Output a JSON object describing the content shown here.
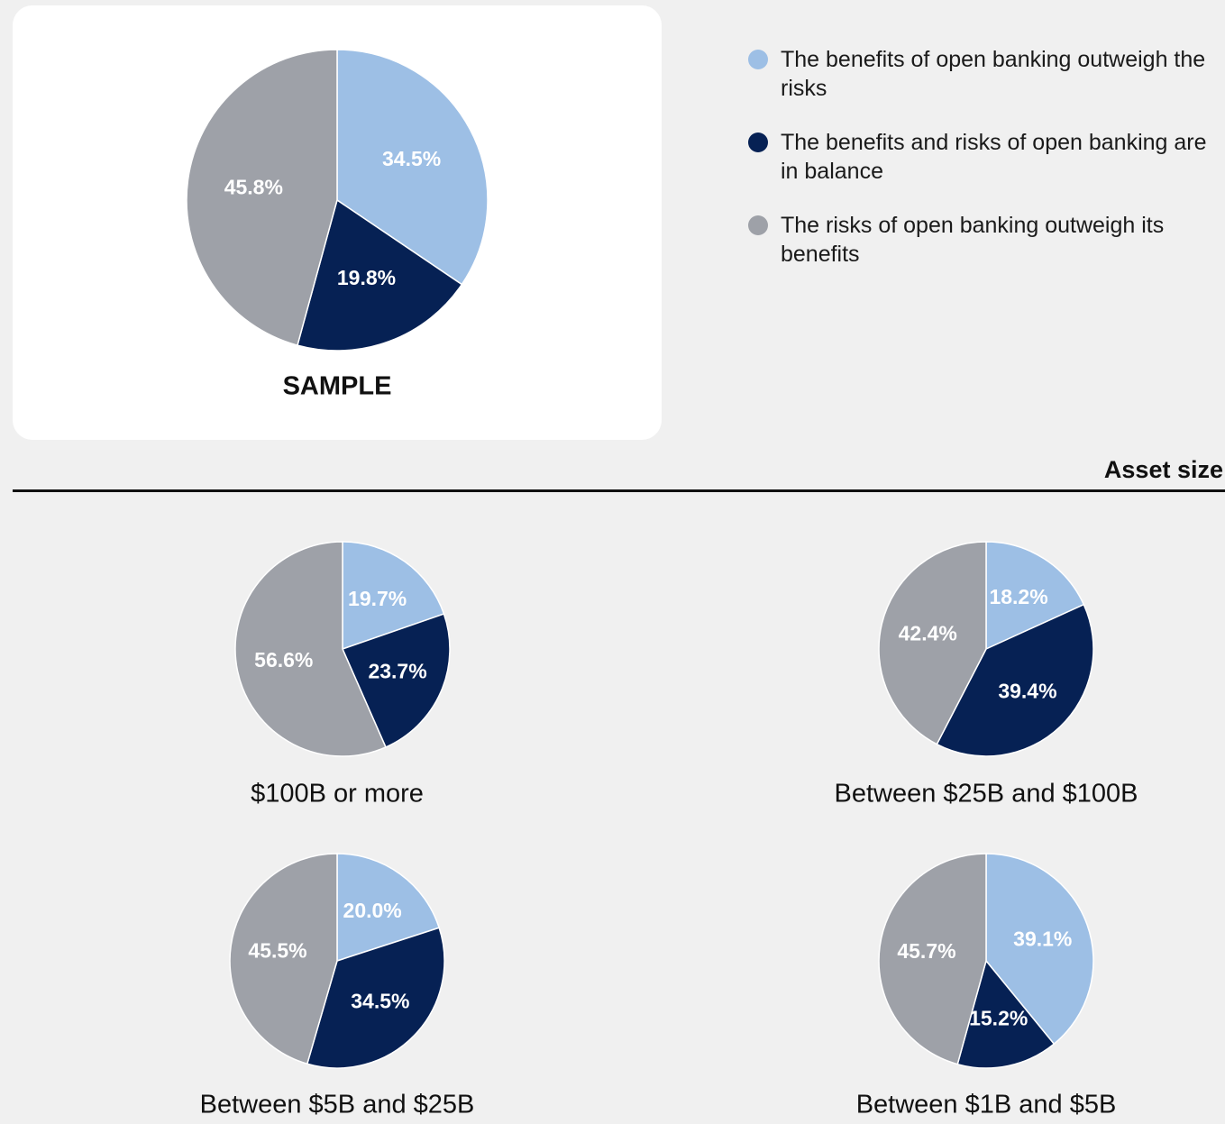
{
  "legend": [
    {
      "name": "The benefits of open banking outweigh the risks",
      "color": "#9dbfe5"
    },
    {
      "name": "The benefits and risks of open banking are in balance",
      "color": "#062154"
    },
    {
      "name": "The risks of open banking outweigh its benefits",
      "color": "#9ea1a8"
    }
  ],
  "heading": "Asset size",
  "chart_data": [
    {
      "type": "pie",
      "title": "SAMPLE",
      "values": [
        34.5,
        19.8,
        45.8
      ],
      "value_labels": [
        "34.5%",
        "19.8%",
        "45.8%"
      ]
    },
    {
      "type": "pie",
      "title": "$100B or more",
      "values": [
        19.7,
        23.7,
        56.6
      ],
      "value_labels": [
        "19.7%",
        "23.7%",
        "56.6%"
      ]
    },
    {
      "type": "pie",
      "title": "Between $25B and $100B",
      "values": [
        18.2,
        39.4,
        42.4
      ],
      "value_labels": [
        "18.2%",
        "39.4%",
        "42.4%"
      ]
    },
    {
      "type": "pie",
      "title": "Between $5B and $25B",
      "values": [
        20.0,
        34.5,
        45.5
      ],
      "value_labels": [
        "20.0%",
        "34.5%",
        "45.5%"
      ]
    },
    {
      "type": "pie",
      "title": "Between $1B and $5B",
      "values": [
        39.1,
        15.2,
        45.7
      ],
      "value_labels": [
        "39.1%",
        "15.2%",
        "45.7%"
      ]
    }
  ]
}
